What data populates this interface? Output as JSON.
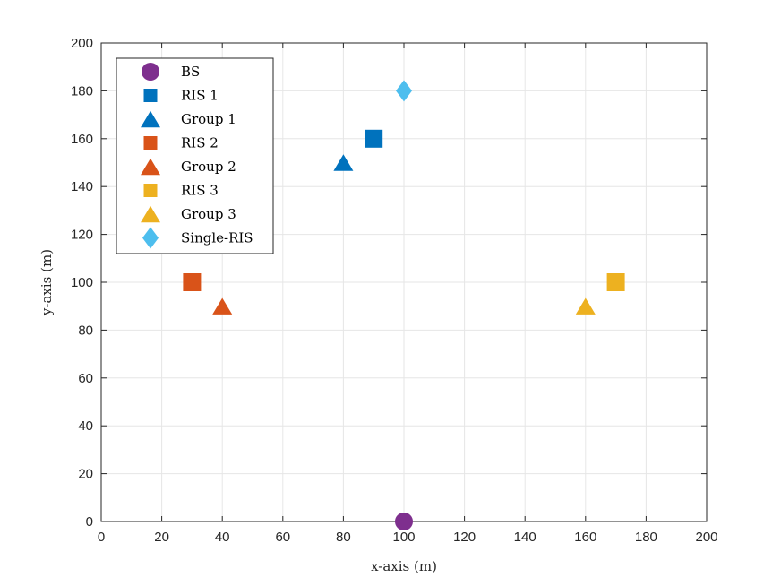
{
  "chart_data": {
    "type": "scatter",
    "title": "",
    "xlabel": "x-axis (m)",
    "ylabel": "y-axis (m)",
    "xlim": [
      0,
      200
    ],
    "ylim": [
      0,
      200
    ],
    "xticks": [
      0,
      20,
      40,
      60,
      80,
      100,
      120,
      140,
      160,
      180,
      200
    ],
    "yticks": [
      0,
      20,
      40,
      60,
      80,
      100,
      120,
      140,
      160,
      180,
      200
    ],
    "grid": true,
    "legend_position": "top-left",
    "series": [
      {
        "name": "BS",
        "marker": "circle",
        "color": "#7E2F8E",
        "points": [
          {
            "x": 100,
            "y": 0
          }
        ]
      },
      {
        "name": "RIS 1",
        "marker": "square",
        "color": "#0072BD",
        "points": [
          {
            "x": 90,
            "y": 160
          }
        ]
      },
      {
        "name": "Group 1",
        "marker": "triangle",
        "color": "#0072BD",
        "points": [
          {
            "x": 80,
            "y": 150
          }
        ]
      },
      {
        "name": "RIS 2",
        "marker": "square",
        "color": "#D95319",
        "points": [
          {
            "x": 30,
            "y": 100
          }
        ]
      },
      {
        "name": "Group 2",
        "marker": "triangle",
        "color": "#D95319",
        "points": [
          {
            "x": 40,
            "y": 90
          }
        ]
      },
      {
        "name": "RIS 3",
        "marker": "square",
        "color": "#EDB120",
        "points": [
          {
            "x": 170,
            "y": 100
          }
        ]
      },
      {
        "name": "Group 3",
        "marker": "triangle",
        "color": "#EDB120",
        "points": [
          {
            "x": 160,
            "y": 90
          }
        ]
      },
      {
        "name": "Single-RIS",
        "marker": "diamond",
        "color": "#4DBEEE",
        "points": [
          {
            "x": 100,
            "y": 180
          }
        ]
      }
    ]
  }
}
